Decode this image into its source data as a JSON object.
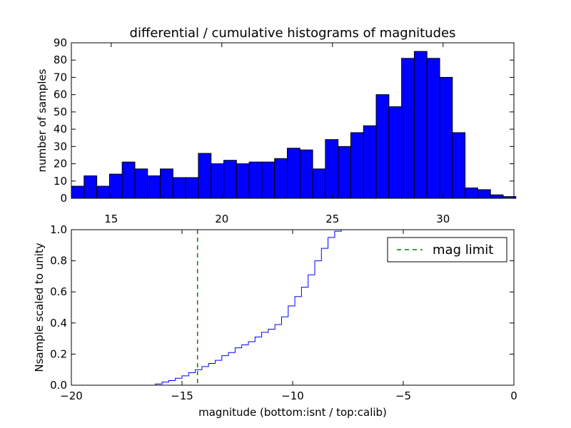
{
  "figure": {
    "title": "differential / cumulative histograms of magnitudes",
    "xlabel": "magnitude (bottom:isnt / top:calib)"
  },
  "chart_data": [
    {
      "type": "bar",
      "name": "differential histogram",
      "ylabel": "number of samples",
      "xlim": [
        13.2,
        33.2
      ],
      "ylim": [
        0,
        90
      ],
      "xticks": [
        15,
        20,
        25,
        30
      ],
      "yticks": [
        0,
        10,
        20,
        30,
        40,
        50,
        60,
        70,
        80,
        90
      ],
      "bin_start": 13.2,
      "bin_width": 0.574,
      "bar_color": "#0000ff",
      "values": [
        7,
        13,
        7,
        14,
        21,
        17,
        13,
        17,
        12,
        12,
        26,
        20,
        22,
        20,
        21,
        21,
        23,
        29,
        28,
        17,
        34,
        30,
        38,
        42,
        60,
        53,
        81,
        85,
        81,
        70,
        38,
        6,
        5,
        2,
        1
      ]
    },
    {
      "type": "line",
      "name": "cumulative histogram",
      "ylabel": "Nsample scaled to unity",
      "xlim": [
        -20,
        0
      ],
      "ylim": [
        0,
        1.0
      ],
      "xticks": [
        -20,
        -15,
        -10,
        -5,
        0
      ],
      "yticks": [
        0.0,
        0.2,
        0.4,
        0.6,
        0.8,
        1.0
      ],
      "step_color": "#0000ff",
      "x": [
        -20,
        -16.2,
        -15.9,
        -15.6,
        -15.3,
        -15.0,
        -14.7,
        -14.4,
        -14.1,
        -13.8,
        -13.5,
        -13.2,
        -12.9,
        -12.6,
        -12.3,
        -12.0,
        -11.7,
        -11.4,
        -11.1,
        -10.8,
        -10.5,
        -10.2,
        -9.9,
        -9.6,
        -9.3,
        -9.0,
        -8.7,
        -8.4,
        -8.1,
        -7.8,
        0
      ],
      "y": [
        0,
        0.008,
        0.02,
        0.03,
        0.045,
        0.06,
        0.08,
        0.1,
        0.12,
        0.14,
        0.16,
        0.19,
        0.21,
        0.24,
        0.26,
        0.28,
        0.31,
        0.34,
        0.36,
        0.39,
        0.44,
        0.51,
        0.57,
        0.63,
        0.71,
        0.8,
        0.88,
        0.95,
        0.99,
        1.0,
        1.0
      ],
      "mag_limit": {
        "label": "mag limit",
        "x": -14.3,
        "color": "#008000"
      },
      "legend_placement": "upper right"
    }
  ]
}
